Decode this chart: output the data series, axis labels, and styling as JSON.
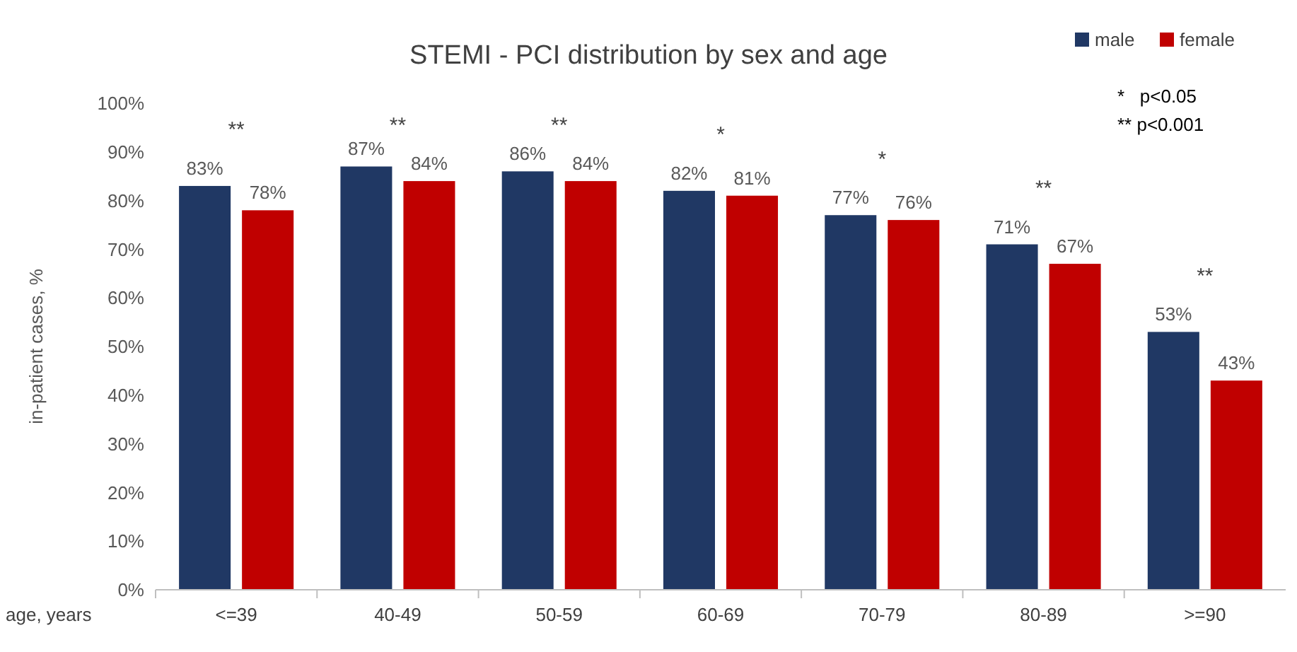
{
  "chart_data": {
    "type": "bar",
    "title": "STEMI - PCI distribution by sex and age",
    "xlabel": "age, years",
    "ylabel": "in-patient cases, %",
    "categories": [
      "<=39",
      "40-49",
      "50-59",
      "60-69",
      "70-79",
      "80-89",
      ">=90"
    ],
    "series": [
      {
        "name": "male",
        "color": "#203864",
        "values": [
          83,
          87,
          86,
          82,
          77,
          71,
          53
        ],
        "value_labels": [
          "83%",
          "87%",
          "86%",
          "82%",
          "77%",
          "71%",
          "53%"
        ]
      },
      {
        "name": "female",
        "color": "#c00000",
        "values": [
          78,
          84,
          84,
          81,
          76,
          67,
          43
        ],
        "value_labels": [
          "78%",
          "84%",
          "84%",
          "81%",
          "76%",
          "67%",
          "43%"
        ]
      }
    ],
    "ylim": [
      0,
      100
    ],
    "yticks": [
      {
        "value": 0,
        "label": "0%"
      },
      {
        "value": 10,
        "label": "10%"
      },
      {
        "value": 20,
        "label": "20%"
      },
      {
        "value": 30,
        "label": "30%"
      },
      {
        "value": 40,
        "label": "40%"
      },
      {
        "value": 50,
        "label": "50%"
      },
      {
        "value": 60,
        "label": "60%"
      },
      {
        "value": 70,
        "label": "70%"
      },
      {
        "value": 80,
        "label": "80%"
      },
      {
        "value": 90,
        "label": "90%"
      },
      {
        "value": 100,
        "label": "100%"
      }
    ],
    "grid": false,
    "legend": "top right",
    "annotations": [
      "**",
      "**",
      "**",
      "*",
      "*",
      "**",
      "**",
      "*   p<0.05",
      "** p<0.001"
    ]
  }
}
